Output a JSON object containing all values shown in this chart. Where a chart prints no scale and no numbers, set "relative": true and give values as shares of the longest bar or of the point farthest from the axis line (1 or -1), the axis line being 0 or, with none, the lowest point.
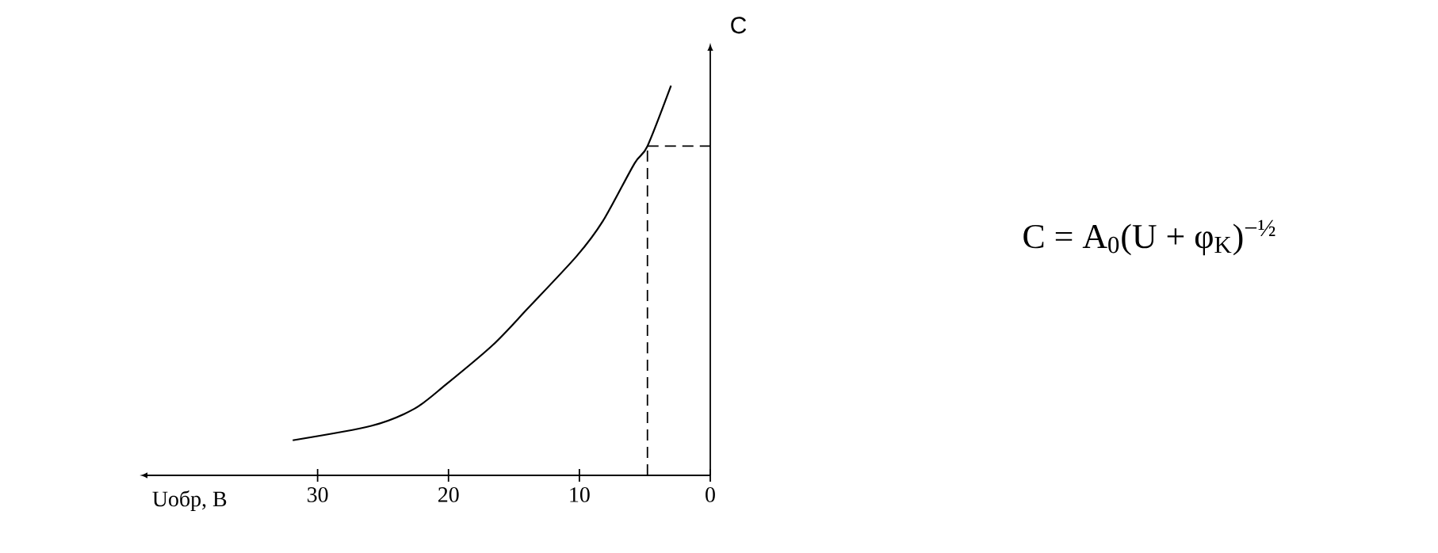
{
  "chart_data": {
    "type": "line",
    "xlabel": "Uобр, В",
    "ylabel": "C",
    "relative": true,
    "x": [
      31.9,
      25.9,
      22.6,
      20.2,
      16.6,
      13.9,
      10.2,
      8.2,
      5.8,
      4.8,
      3.0
    ],
    "series": [
      {
        "color": "#000000",
        "values": [
          0.09,
          0.127,
          0.171,
          0.233,
          0.335,
          0.43,
          0.563,
          0.653,
          0.8,
          0.845,
          1
        ]
      }
    ],
    "xlim": [
      43,
      0
    ],
    "xticks": [
      0,
      10,
      20,
      30
    ],
    "ref_lines": [
      {
        "axis": "x",
        "value": 4.8,
        "line_style": "dashed"
      },
      {
        "axis": "y",
        "value": 0.845,
        "line_style": "dashed"
      }
    ],
    "annotations": [
      "C = A$_{0}$(U + φ$_{K}$)$^{−½}$"
    ],
    "marker": "none",
    "line_style": "solid"
  }
}
